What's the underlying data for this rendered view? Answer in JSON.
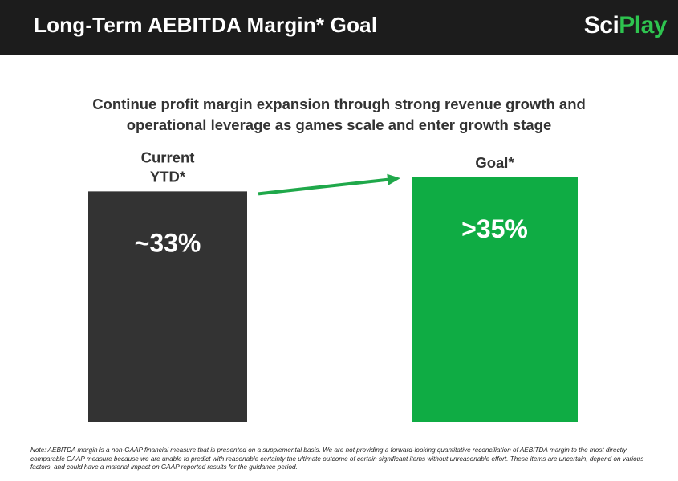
{
  "header": {
    "title": "Long-Term AEBITDA Margin* Goal",
    "logo_sci": "Sci",
    "logo_play": "Play"
  },
  "subtitle": {
    "line1": "Continue profit margin expansion through strong revenue growth and",
    "line2": "operational leverage as games scale and enter growth stage"
  },
  "chart_data": {
    "type": "bar",
    "categories": [
      "Current YTD*",
      "Goal*"
    ],
    "category_lines": [
      [
        "Current",
        "YTD*"
      ],
      [
        "Goal*"
      ]
    ],
    "values": [
      33,
      35
    ],
    "data_labels": [
      "~33%",
      ">35%"
    ],
    "colors": [
      "#333333",
      "#0fac44"
    ],
    "arrow_color": "#1fa84a",
    "ylim": [
      0,
      50
    ]
  },
  "note": "Note: AEBITDA margin is a non-GAAP financial measure that is presented on a supplemental basis. We are not providing a forward-looking quantitative reconciliation of AEBITDA margin to the most directly comparable GAAP measure because we are unable to predict with reasonable certainty the ultimate outcome of certain significant items without unreasonable effort. These items are uncertain, depend on various factors, and could have a material impact on GAAP reported results for the guidance period."
}
